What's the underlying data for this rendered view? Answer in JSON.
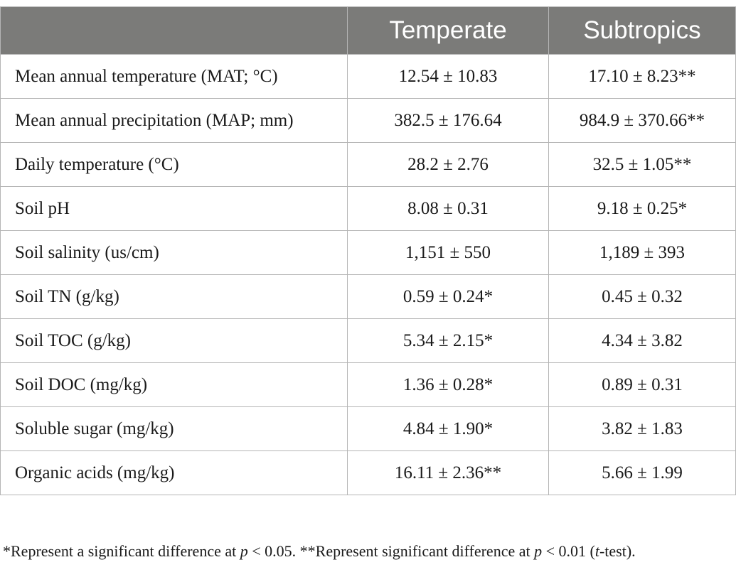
{
  "table": {
    "headers": [
      "",
      "Temperate",
      "Subtropics"
    ],
    "rows": [
      {
        "label": "Mean annual temperature (MAT; °C)",
        "temperate": "12.54 ± 10.83",
        "subtropics": "17.10 ± 8.23**"
      },
      {
        "label": "Mean annual precipitation (MAP; mm)",
        "temperate": "382.5 ± 176.64",
        "subtropics": "984.9 ± 370.66**"
      },
      {
        "label": "Daily temperature (°C)",
        "temperate": "28.2 ± 2.76",
        "subtropics": "32.5 ± 1.05**"
      },
      {
        "label": "Soil pH",
        "temperate": "8.08 ± 0.31",
        "subtropics": "9.18 ± 0.25*"
      },
      {
        "label": "Soil salinity (us/cm)",
        "temperate": "1,151 ± 550",
        "subtropics": "1,189 ± 393"
      },
      {
        "label": "Soil TN (g/kg)",
        "temperate": "0.59 ± 0.24*",
        "subtropics": "0.45 ± 0.32"
      },
      {
        "label": "Soil TOC (g/kg)",
        "temperate": "5.34 ± 2.15*",
        "subtropics": "4.34 ± 3.82"
      },
      {
        "label": "Soil DOC (mg/kg)",
        "temperate": "1.36 ± 0.28*",
        "subtropics": "0.89 ± 0.31"
      },
      {
        "label": "Soluble sugar (mg/kg)",
        "temperate": "4.84 ± 1.90*",
        "subtropics": "3.82 ± 1.83"
      },
      {
        "label": "Organic acids (mg/kg)",
        "temperate": "16.11 ± 2.36**",
        "subtropics": "5.66 ± 1.99"
      }
    ]
  },
  "footnote": {
    "part1": "*Represent a significant difference at ",
    "p1": "p",
    "part2": " < 0.05. **Represent significant difference at ",
    "p2": "p",
    "part3": " < 0.01 (",
    "t": "t",
    "part4": "-test)."
  }
}
